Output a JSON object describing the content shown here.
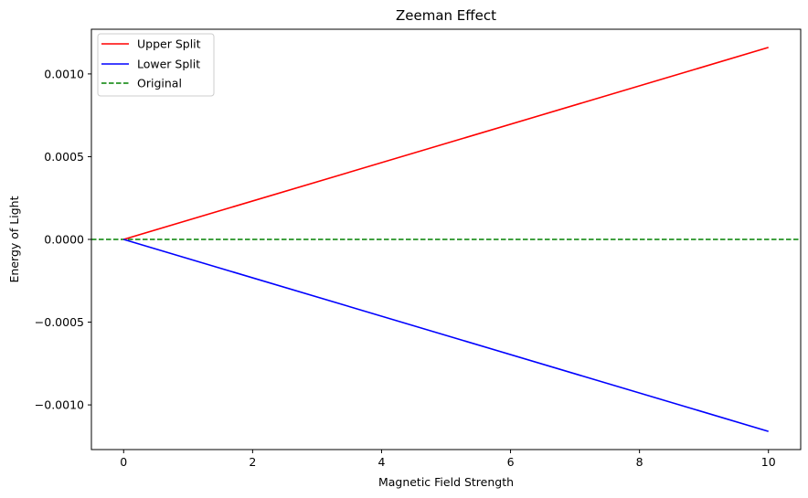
{
  "chart_data": {
    "type": "line",
    "title": "Zeeman Effect",
    "xlabel": "Magnetic Field Strength",
    "ylabel": "Energy of Light",
    "xlim": [
      -0.5,
      10.5
    ],
    "ylim": [
      -0.00127,
      0.00127
    ],
    "xticks": [
      0,
      2,
      4,
      6,
      8,
      10
    ],
    "xtick_labels": [
      "0",
      "2",
      "4",
      "6",
      "8",
      "10"
    ],
    "yticks": [
      -0.001,
      -0.0005,
      0,
      0.0005,
      0.001
    ],
    "ytick_labels": [
      "−0.0010",
      "−0.0005",
      "0.0000",
      "0.0005",
      "0.0010"
    ],
    "grid": false,
    "legend_position": "top-left",
    "series": [
      {
        "name": "Upper Split",
        "color": "#ff0000",
        "style": "solid",
        "x": [
          0,
          10
        ],
        "y": [
          0,
          0.00116
        ]
      },
      {
        "name": "Lower Split",
        "color": "#0000ff",
        "style": "solid",
        "x": [
          0,
          10
        ],
        "y": [
          0,
          -0.00116
        ]
      },
      {
        "name": "Original",
        "color": "#008000",
        "style": "dashed",
        "x": [
          -0.5,
          10.5
        ],
        "y": [
          0,
          0
        ]
      }
    ]
  }
}
